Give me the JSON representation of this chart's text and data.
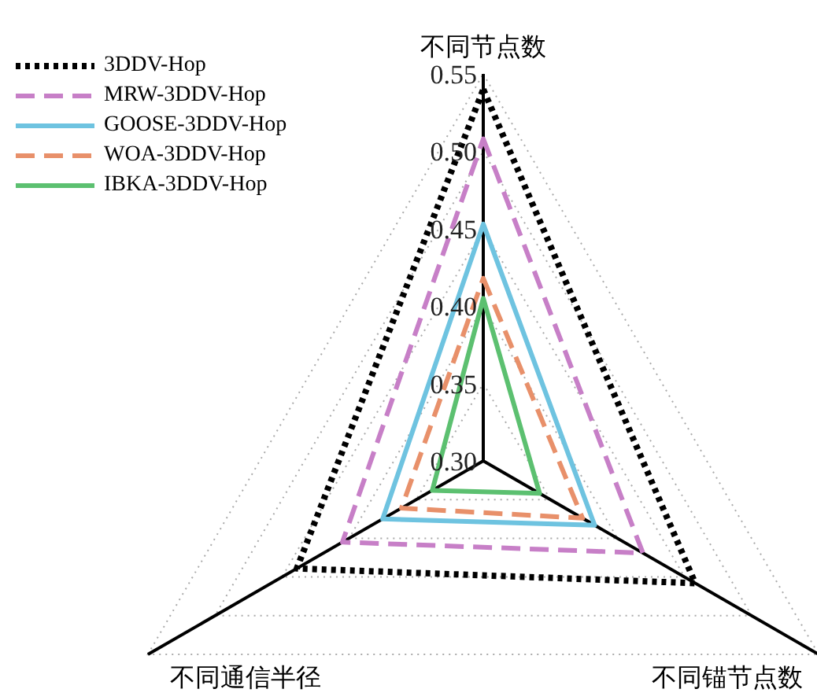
{
  "chart_data": {
    "type": "radar",
    "categories": [
      "不同节点数",
      "不同锚节点数",
      "不同通信半径"
    ],
    "ylim": [
      0.3,
      0.55
    ],
    "yticks": [
      {
        "value": 0.3,
        "label": "0.30"
      },
      {
        "value": 0.35,
        "label": "0.35"
      },
      {
        "value": 0.4,
        "label": "0.40"
      },
      {
        "value": 0.45,
        "label": "0.45"
      },
      {
        "value": 0.5,
        "label": "0.50"
      },
      {
        "value": 0.55,
        "label": "0.55"
      }
    ],
    "grid": true,
    "legend": "top left",
    "series": [
      {
        "name": "3DDV-Hop",
        "color": "#000000",
        "line_style": "dotted",
        "values": [
          0.54,
          0.458,
          0.439
        ]
      },
      {
        "name": "MRW-3DDV-Hop",
        "color": "#c77fc7",
        "line_style": "dashed",
        "values": [
          0.508,
          0.419,
          0.405
        ]
      },
      {
        "name": "GOOSE-3DDV-Hop",
        "color": "#6ec3e0",
        "line_style": "solid",
        "values": [
          0.453,
          0.383,
          0.375
        ]
      },
      {
        "name": "WOA-3DDV-Hop",
        "color": "#e8906a",
        "line_style": "dashed",
        "values": [
          0.418,
          0.374,
          0.361
        ]
      },
      {
        "name": "IBKA-3DDV-Hop",
        "color": "#5cc070",
        "line_style": "solid",
        "values": [
          0.405,
          0.342,
          0.338
        ]
      }
    ]
  }
}
